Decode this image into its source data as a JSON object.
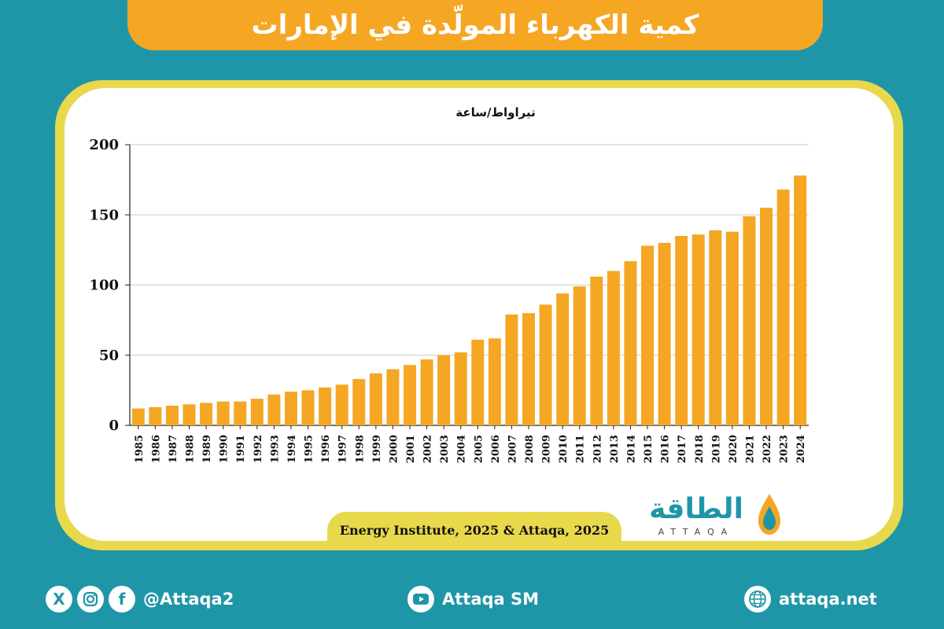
{
  "title": "كمية الكهرباء المولّدة في الإمارات",
  "source": "Energy Institute, 2025 & Attaqa, 2025",
  "brand": {
    "arabic": "الطاقة",
    "latin": "ATTAQA"
  },
  "footer": {
    "social_handle": "@Attaqa2",
    "youtube": "Attaqa SM",
    "website": "attaqa.net",
    "icons": [
      "x-icon",
      "instagram-icon",
      "facebook-icon",
      "youtube-icon",
      "globe-icon"
    ]
  },
  "colors": {
    "bar": "#f5a623",
    "background": "#1f96a8",
    "frame": "#e8d84c",
    "grid": "#cccccc"
  },
  "chart_data": {
    "type": "bar",
    "title": "",
    "xlabel": "",
    "ylabel": "تيراواط/ساعة",
    "ylim": [
      0,
      200
    ],
    "yticks": [
      0,
      50,
      100,
      150,
      200
    ],
    "grid": true,
    "categories": [
      "1985",
      "1986",
      "1987",
      "1988",
      "1989",
      "1990",
      "1991",
      "1992",
      "1993",
      "1994",
      "1995",
      "1996",
      "1997",
      "1998",
      "1999",
      "2000",
      "2001",
      "2002",
      "2003",
      "2004",
      "2005",
      "2006",
      "2007",
      "2008",
      "2009",
      "2010",
      "2011",
      "2012",
      "2013",
      "2014",
      "2015",
      "2016",
      "2017",
      "2018",
      "2019",
      "2020",
      "2021",
      "2022",
      "2023",
      "2024"
    ],
    "values": [
      12,
      13,
      14,
      15,
      16,
      17,
      17,
      19,
      22,
      24,
      25,
      27,
      29,
      33,
      37,
      40,
      43,
      47,
      50,
      52,
      61,
      62,
      79,
      80,
      86,
      94,
      99,
      106,
      110,
      117,
      128,
      130,
      135,
      136,
      139,
      138,
      149,
      155,
      168,
      178
    ]
  }
}
